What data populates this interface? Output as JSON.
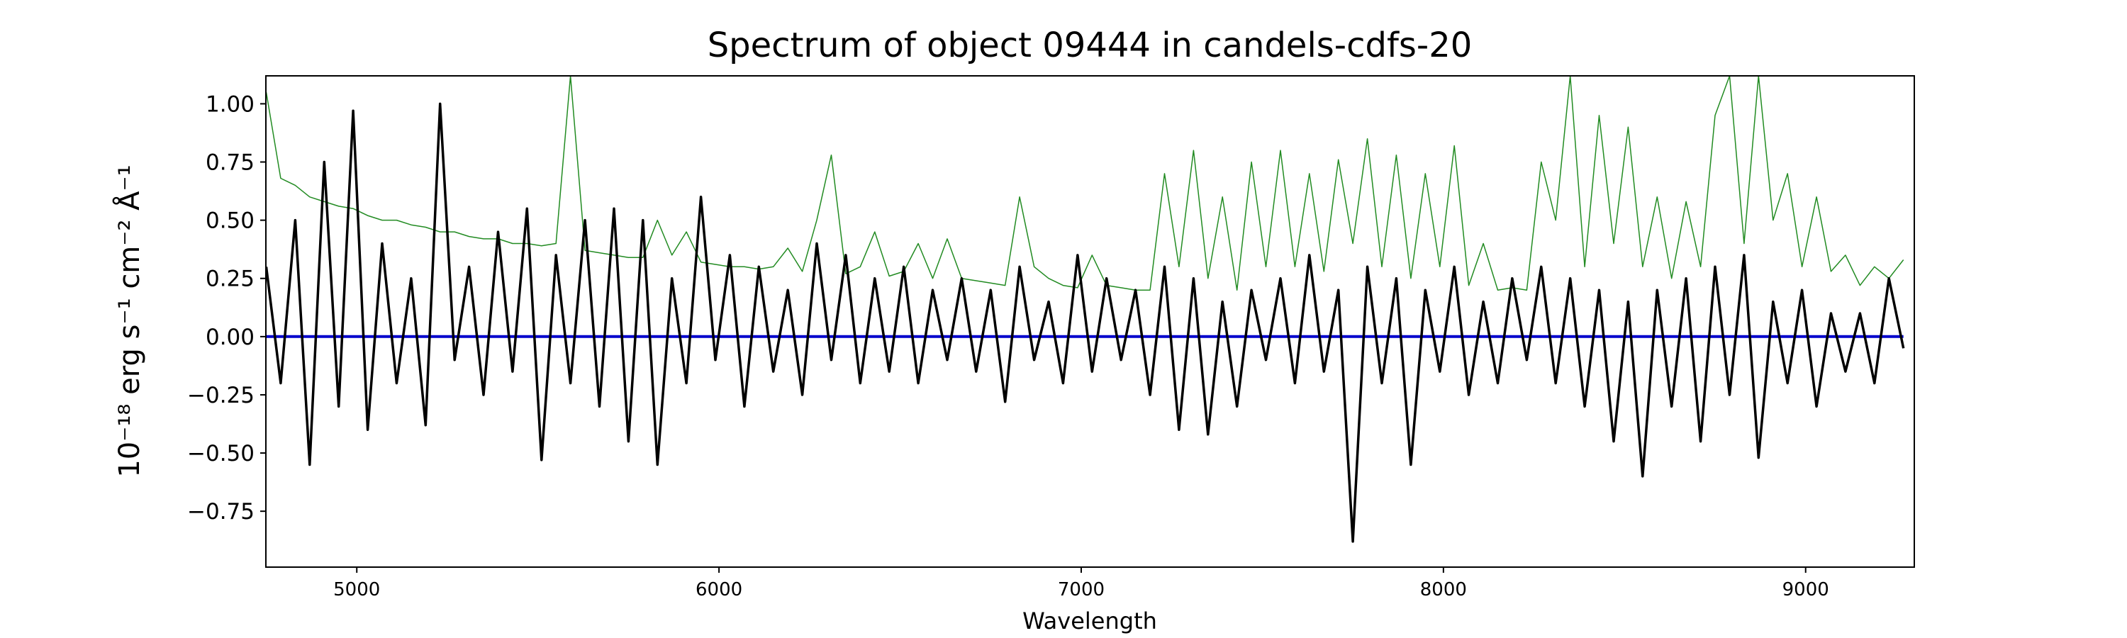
{
  "chart_data": {
    "type": "line",
    "title": "Spectrum of object 09444 in candels-cdfs-20",
    "x_label": "Wavelength",
    "y_label": "10⁻¹⁸ erg s⁻¹ cm⁻² Å⁻¹",
    "x": [
      4750,
      4790,
      4830,
      4870,
      4910,
      4950,
      4990,
      5030,
      5070,
      5110,
      5150,
      5190,
      5230,
      5270,
      5310,
      5350,
      5390,
      5430,
      5470,
      5510,
      5550,
      5590,
      5630,
      5670,
      5710,
      5750,
      5790,
      5830,
      5870,
      5910,
      5950,
      5990,
      6030,
      6070,
      6110,
      6150,
      6190,
      6230,
      6270,
      6310,
      6350,
      6390,
      6430,
      6470,
      6510,
      6550,
      6590,
      6630,
      6670,
      6710,
      6750,
      6790,
      6830,
      6870,
      6910,
      6950,
      6990,
      7030,
      7070,
      7110,
      7150,
      7190,
      7230,
      7270,
      7310,
      7350,
      7390,
      7430,
      7470,
      7510,
      7550,
      7590,
      7630,
      7670,
      7710,
      7750,
      7790,
      7830,
      7870,
      7910,
      7950,
      7990,
      8030,
      8070,
      8110,
      8150,
      8190,
      8230,
      8270,
      8310,
      8350,
      8390,
      8430,
      8470,
      8510,
      8550,
      8590,
      8630,
      8670,
      8710,
      8750,
      8790,
      8830,
      8870,
      8910,
      8950,
      8990,
      9030,
      9070,
      9110,
      9150,
      9190,
      9230,
      9270
    ],
    "series": [
      {
        "color": "#228b22",
        "width": 1.5,
        "values": [
          1.05,
          0.68,
          0.65,
          0.6,
          0.58,
          0.56,
          0.55,
          0.52,
          0.5,
          0.5,
          0.48,
          0.47,
          0.45,
          0.45,
          0.43,
          0.42,
          0.42,
          0.4,
          0.4,
          0.39,
          0.4,
          1.12,
          0.37,
          0.36,
          0.35,
          0.34,
          0.34,
          0.5,
          0.35,
          0.45,
          0.32,
          0.31,
          0.3,
          0.3,
          0.29,
          0.3,
          0.38,
          0.28,
          0.5,
          0.78,
          0.27,
          0.3,
          0.45,
          0.26,
          0.28,
          0.4,
          0.25,
          0.42,
          0.25,
          0.24,
          0.23,
          0.22,
          0.6,
          0.3,
          0.25,
          0.22,
          0.21,
          0.35,
          0.22,
          0.21,
          0.2,
          0.2,
          0.7,
          0.3,
          0.8,
          0.25,
          0.6,
          0.2,
          0.75,
          0.3,
          0.8,
          0.3,
          0.7,
          0.28,
          0.76,
          0.4,
          0.85,
          0.3,
          0.78,
          0.25,
          0.7,
          0.3,
          0.82,
          0.22,
          0.4,
          0.2,
          0.21,
          0.2,
          0.75,
          0.5,
          1.12,
          0.3,
          0.95,
          0.4,
          0.9,
          0.3,
          0.6,
          0.25,
          0.58,
          0.3,
          0.95,
          1.12,
          0.4,
          1.12,
          0.5,
          0.7,
          0.3,
          0.6,
          0.28,
          0.35,
          0.22,
          0.3,
          0.25,
          0.33
        ]
      },
      {
        "color": "#0000cc",
        "width": 4,
        "values": [
          0,
          0,
          0,
          0,
          0,
          0,
          0,
          0,
          0,
          0,
          0,
          0,
          0,
          0,
          0,
          0,
          0,
          0,
          0,
          0,
          0,
          0,
          0,
          0,
          0,
          0,
          0,
          0,
          0,
          0,
          0,
          0,
          0,
          0,
          0,
          0,
          0,
          0,
          0,
          0,
          0,
          0,
          0,
          0,
          0,
          0,
          0,
          0,
          0,
          0,
          0,
          0,
          0,
          0,
          0,
          0,
          0,
          0,
          0,
          0,
          0,
          0,
          0,
          0,
          0,
          0,
          0,
          0,
          0,
          0,
          0,
          0,
          0,
          0,
          0,
          0,
          0,
          0,
          0,
          0,
          0,
          0,
          0,
          0,
          0,
          0,
          0,
          0,
          0,
          0,
          0,
          0,
          0,
          0,
          0,
          0,
          0,
          0,
          0,
          0,
          0,
          0,
          0,
          0,
          0,
          0,
          0,
          0,
          0,
          0,
          0,
          0,
          0,
          0
        ]
      },
      {
        "color": "#000000",
        "width": 3.5,
        "values": [
          0.3,
          -0.2,
          0.5,
          -0.55,
          0.75,
          -0.3,
          0.97,
          -0.4,
          0.4,
          -0.2,
          0.25,
          -0.38,
          1.0,
          -0.1,
          0.3,
          -0.25,
          0.45,
          -0.15,
          0.55,
          -0.53,
          0.35,
          -0.2,
          0.5,
          -0.3,
          0.55,
          -0.45,
          0.5,
          -0.55,
          0.25,
          -0.2,
          0.6,
          -0.1,
          0.35,
          -0.3,
          0.3,
          -0.15,
          0.2,
          -0.25,
          0.4,
          -0.1,
          0.35,
          -0.2,
          0.25,
          -0.15,
          0.3,
          -0.2,
          0.2,
          -0.1,
          0.25,
          -0.15,
          0.2,
          -0.28,
          0.3,
          -0.1,
          0.15,
          -0.2,
          0.35,
          -0.15,
          0.25,
          -0.1,
          0.2,
          -0.25,
          0.3,
          -0.4,
          0.25,
          -0.42,
          0.15,
          -0.3,
          0.2,
          -0.1,
          0.25,
          -0.2,
          0.35,
          -0.15,
          0.2,
          -0.88,
          0.3,
          -0.2,
          0.25,
          -0.55,
          0.2,
          -0.15,
          0.3,
          -0.25,
          0.15,
          -0.2,
          0.25,
          -0.1,
          0.3,
          -0.2,
          0.25,
          -0.3,
          0.2,
          -0.45,
          0.15,
          -0.6,
          0.2,
          -0.3,
          0.25,
          -0.45,
          0.3,
          -0.25,
          0.35,
          -0.52,
          0.15,
          -0.2,
          0.2,
          -0.3,
          0.1,
          -0.15,
          0.1,
          -0.2,
          0.25,
          -0.05
        ]
      }
    ],
    "xlim": [
      4749,
      9300
    ],
    "ylim": [
      -0.99,
      1.12
    ],
    "xticks": [
      5000,
      6000,
      7000,
      8000,
      9000
    ],
    "yticks": [
      {
        "value": -0.75,
        "label": "−0.75"
      },
      {
        "value": -0.5,
        "label": "−0.50"
      },
      {
        "value": -0.25,
        "label": "−0.25"
      },
      {
        "value": 0,
        "label": "0.00"
      },
      {
        "value": 0.25,
        "label": "0.25"
      },
      {
        "value": 0.5,
        "label": "0.50"
      },
      {
        "value": 0.75,
        "label": "0.75"
      },
      {
        "value": 1.0,
        "label": "1.00"
      }
    ]
  }
}
